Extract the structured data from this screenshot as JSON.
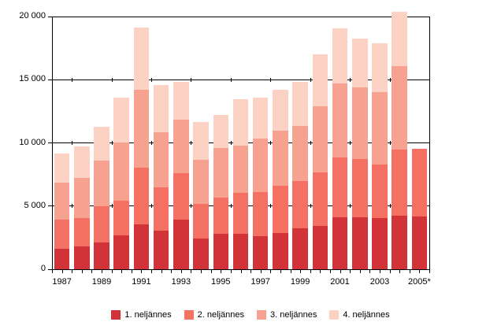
{
  "chart_data": {
    "type": "bar",
    "stacked": true,
    "title": "",
    "xlabel": "",
    "ylabel": "",
    "grid": "horizontal",
    "legend_position": "bottom",
    "background_color": "#ffffff",
    "axis_color": "#000000",
    "ylim": [
      0,
      20000
    ],
    "yticks": [
      {
        "value": 0,
        "label": "0"
      },
      {
        "value": 5000,
        "label": "5 000"
      },
      {
        "value": 10000,
        "label": "10 000"
      },
      {
        "value": 15000,
        "label": "15 000"
      },
      {
        "value": 20000,
        "label": "20 000"
      }
    ],
    "categories": [
      "1987",
      "1988",
      "1989",
      "1990",
      "1991",
      "1992",
      "1993",
      "1994",
      "1995",
      "1996",
      "1997",
      "1998",
      "1999",
      "2000",
      "2001",
      "2002",
      "2003",
      "2004",
      "2005*"
    ],
    "labeled_categories": [
      "1987",
      "1989",
      "1991",
      "1993",
      "1995",
      "1997",
      "1999",
      "2001",
      "2003",
      "2005*"
    ],
    "series": [
      {
        "name": "1. neljännes",
        "color": "#d23338",
        "values": [
          1650,
          1800,
          2100,
          2650,
          3550,
          3050,
          3900,
          2400,
          2800,
          2800,
          2600,
          2850,
          3250,
          3400,
          4100,
          4100,
          4050,
          4250,
          4200
        ]
      },
      {
        "name": "2. neljännes",
        "color": "#f37063",
        "values": [
          2300,
          2250,
          2900,
          2800,
          4500,
          3450,
          3700,
          2800,
          2900,
          3250,
          3500,
          3750,
          3750,
          4250,
          4750,
          4650,
          4250,
          5250,
          5350
        ]
      },
      {
        "name": "3. neljännes",
        "color": "#f7a191",
        "values": [
          2900,
          3150,
          3600,
          4600,
          6150,
          4350,
          4250,
          3450,
          3900,
          3750,
          4250,
          4350,
          4350,
          5250,
          5850,
          5650,
          5700,
          6550,
          0
        ]
      },
      {
        "name": "4. neljännes",
        "color": "#fcd2c5",
        "values": [
          2300,
          2500,
          2650,
          3550,
          4900,
          3750,
          3000,
          3000,
          2600,
          3650,
          3250,
          3250,
          3450,
          4100,
          4350,
          3850,
          3900,
          4300,
          0
        ]
      }
    ],
    "totals": [
      9150,
      9700,
      11250,
      13600,
      19100,
      14600,
      14850,
      11650,
      12200,
      13450,
      13600,
      14200,
      14800,
      17000,
      19050,
      18250,
      17900,
      20350,
      9550
    ]
  }
}
